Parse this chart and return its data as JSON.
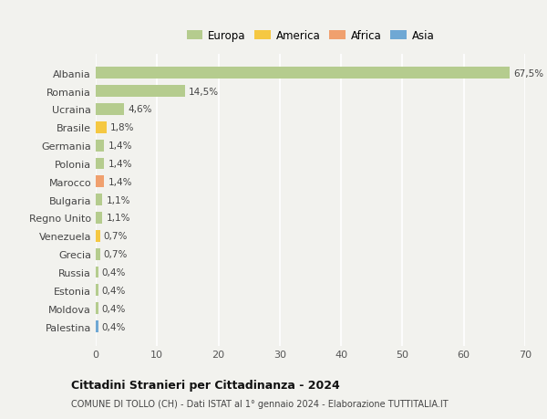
{
  "countries": [
    "Albania",
    "Romania",
    "Ucraina",
    "Brasile",
    "Germania",
    "Polonia",
    "Marocco",
    "Bulgaria",
    "Regno Unito",
    "Venezuela",
    "Grecia",
    "Russia",
    "Estonia",
    "Moldova",
    "Palestina"
  ],
  "values": [
    67.5,
    14.5,
    4.6,
    1.8,
    1.4,
    1.4,
    1.4,
    1.1,
    1.1,
    0.7,
    0.7,
    0.4,
    0.4,
    0.4,
    0.4
  ],
  "labels": [
    "67,5%",
    "14,5%",
    "4,6%",
    "1,8%",
    "1,4%",
    "1,4%",
    "1,4%",
    "1,1%",
    "1,1%",
    "0,7%",
    "0,7%",
    "0,4%",
    "0,4%",
    "0,4%",
    "0,4%"
  ],
  "continents": [
    "Europa",
    "Europa",
    "Europa",
    "America",
    "Europa",
    "Europa",
    "Africa",
    "Europa",
    "Europa",
    "America",
    "Europa",
    "Europa",
    "Europa",
    "Europa",
    "Asia"
  ],
  "colors": {
    "Europa": "#b5cc8e",
    "America": "#f5c842",
    "Africa": "#f0a06e",
    "Asia": "#6fa8d4"
  },
  "xlim": [
    0,
    70
  ],
  "xticks": [
    0,
    10,
    20,
    30,
    40,
    50,
    60,
    70
  ],
  "title": "Cittadini Stranieri per Cittadinanza - 2024",
  "subtitle": "COMUNE DI TOLLO (CH) - Dati ISTAT al 1° gennaio 2024 - Elaborazione TUTTITALIA.IT",
  "background_color": "#f2f2ee",
  "grid_color": "#ffffff",
  "bar_height": 0.65
}
